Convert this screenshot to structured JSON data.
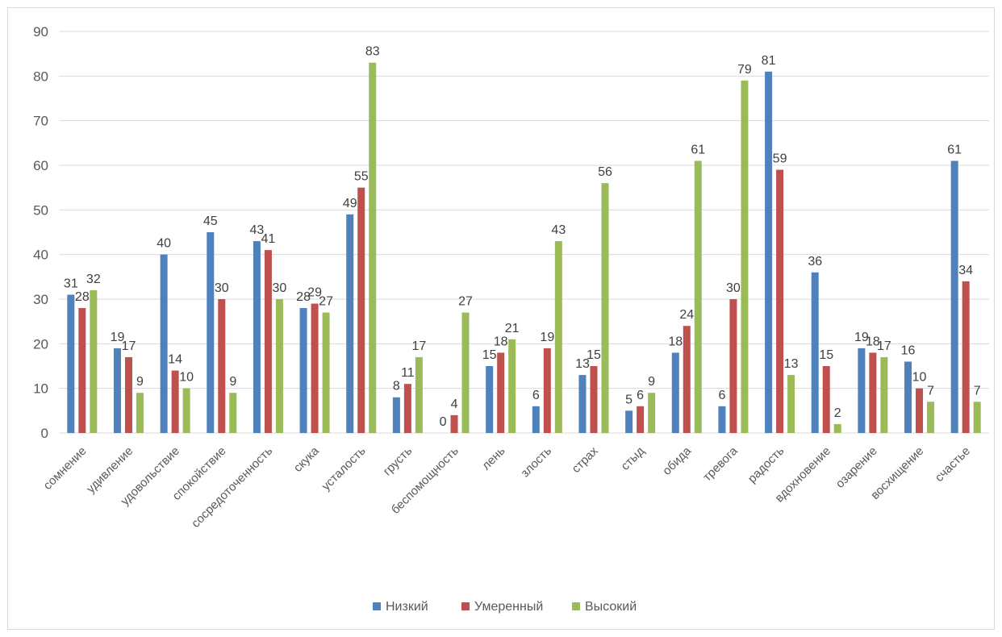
{
  "chart_data": {
    "type": "bar",
    "categories": [
      "сомнение",
      "удивление",
      "удовольствие",
      "спокойствие",
      "сосредоточенность",
      "скука",
      "усталость",
      "грусть",
      "беспомощность",
      "лень",
      "злость",
      "страх",
      "стыд",
      "обида",
      "тревога",
      "радость",
      "вдохновение",
      "озарение",
      "восхищение",
      "счастье"
    ],
    "series": [
      {
        "name": "Низкий",
        "color": "#4f81bd",
        "values": [
          31,
          19,
          40,
          45,
          43,
          28,
          49,
          8,
          0,
          15,
          6,
          13,
          5,
          18,
          6,
          81,
          36,
          19,
          16,
          61
        ]
      },
      {
        "name": "Умеренный",
        "color": "#c0504d",
        "values": [
          28,
          17,
          14,
          30,
          41,
          29,
          55,
          11,
          4,
          18,
          19,
          15,
          6,
          24,
          30,
          59,
          15,
          18,
          10,
          34
        ]
      },
      {
        "name": "Высокий",
        "color": "#9bbb59",
        "values": [
          32,
          9,
          10,
          9,
          30,
          27,
          83,
          17,
          27,
          21,
          43,
          56,
          9,
          61,
          79,
          13,
          2,
          17,
          7,
          7
        ]
      }
    ],
    "ylim": [
      0,
      90
    ],
    "yticks": [
      0,
      10,
      20,
      30,
      40,
      50,
      60,
      70,
      80,
      90
    ],
    "grid": true,
    "legend": "bottom"
  }
}
